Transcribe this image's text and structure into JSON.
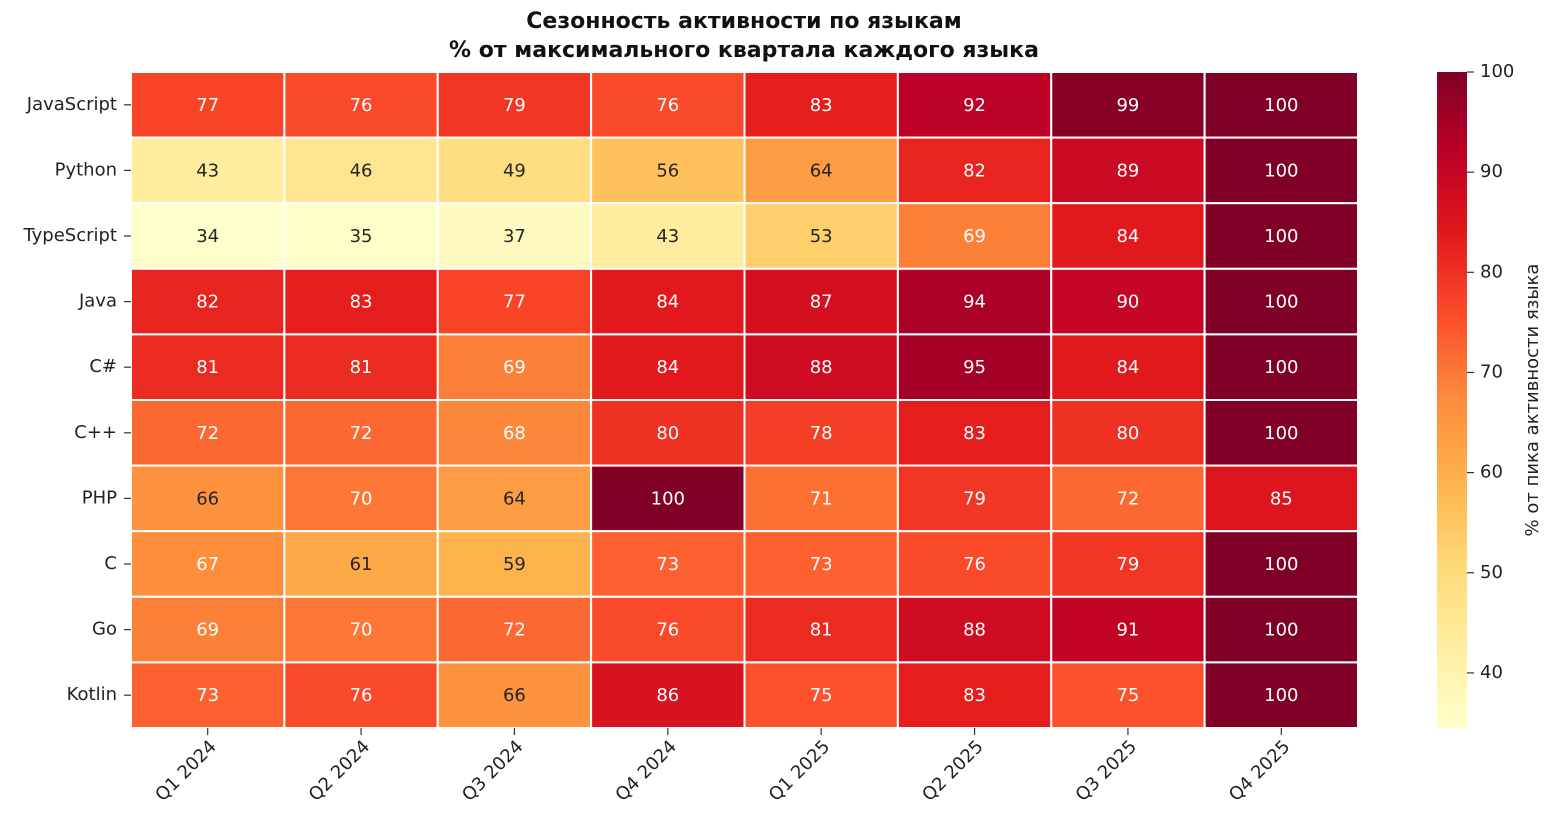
{
  "chart_data": {
    "type": "heatmap",
    "title": "Сезонность активности по языкам",
    "subtitle": "% от максимального квартала каждого языка",
    "x_categories": [
      "Q1 2024",
      "Q2 2024",
      "Q3 2024",
      "Q4 2024",
      "Q1 2025",
      "Q2 2025",
      "Q3 2025",
      "Q4 2025"
    ],
    "y_categories": [
      "JavaScript",
      "Python",
      "TypeScript",
      "Java",
      "C#",
      "C++",
      "PHP",
      "C",
      "Go",
      "Kotlin"
    ],
    "values": [
      [
        77,
        76,
        79,
        76,
        83,
        92,
        99,
        100
      ],
      [
        43,
        46,
        49,
        56,
        64,
        82,
        89,
        100
      ],
      [
        34,
        35,
        37,
        43,
        53,
        69,
        84,
        100
      ],
      [
        82,
        83,
        77,
        84,
        87,
        94,
        90,
        100
      ],
      [
        81,
        81,
        69,
        84,
        88,
        95,
        84,
        100
      ],
      [
        72,
        72,
        68,
        80,
        78,
        83,
        80,
        100
      ],
      [
        66,
        70,
        64,
        100,
        71,
        79,
        72,
        85
      ],
      [
        67,
        61,
        59,
        73,
        73,
        76,
        79,
        100
      ],
      [
        69,
        70,
        72,
        76,
        81,
        88,
        91,
        100
      ],
      [
        73,
        76,
        66,
        86,
        75,
        83,
        75,
        100
      ]
    ],
    "colormap": "YlOrRd",
    "colorbar_label": "% от пика активности языка",
    "clim": [
      34.5,
      100
    ],
    "colorbar_ticks": [
      40,
      50,
      60,
      70,
      80,
      90,
      100
    ]
  }
}
